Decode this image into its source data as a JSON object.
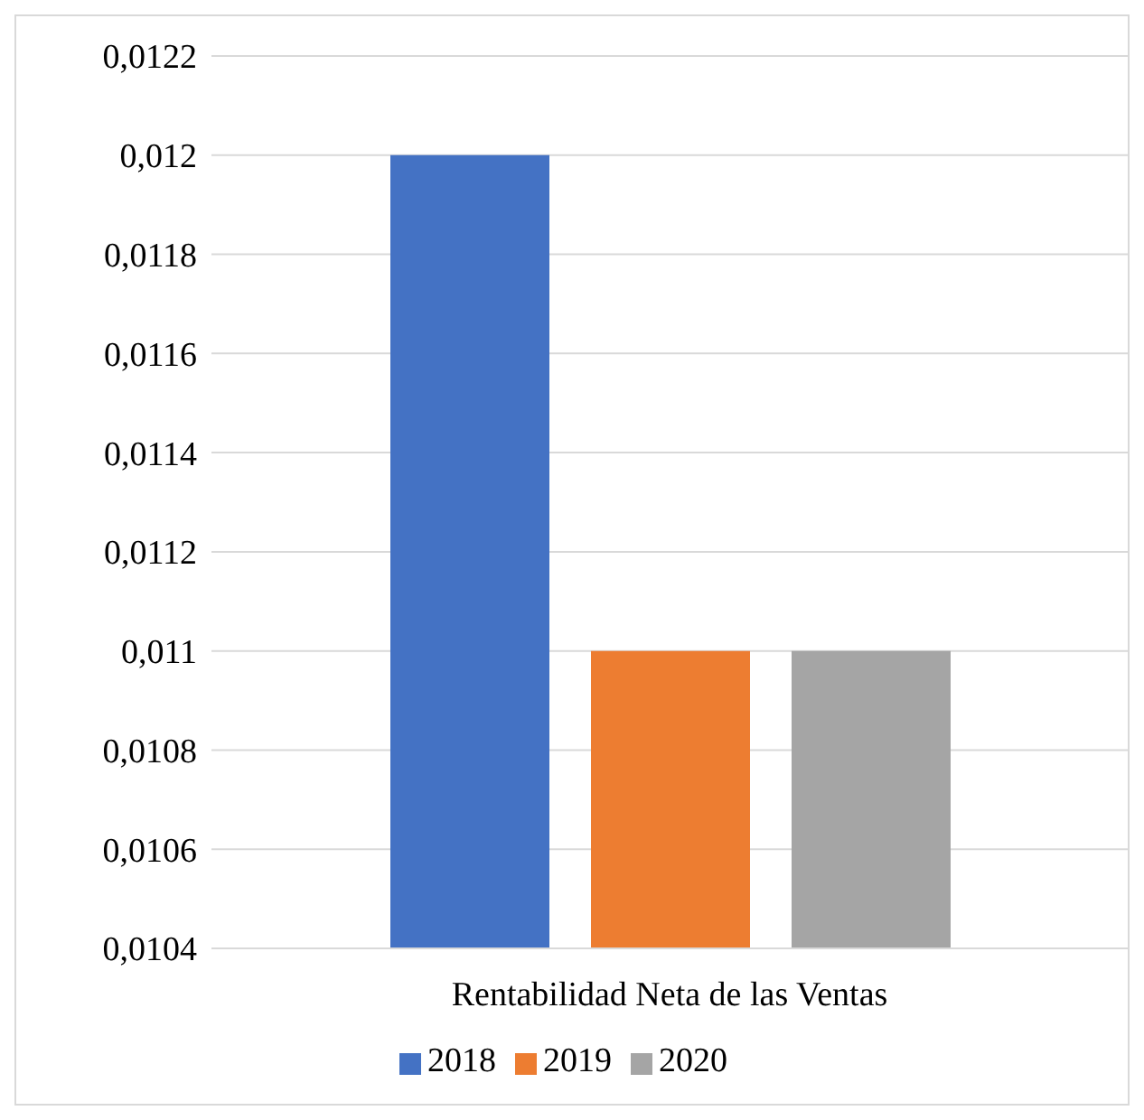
{
  "chart_data": {
    "type": "bar",
    "categories": [
      "Rentabilidad Neta de las Ventas"
    ],
    "series": [
      {
        "name": "2018",
        "color": "#4472c4",
        "values": [
          0.012
        ]
      },
      {
        "name": "2019",
        "color": "#ed7d31",
        "values": [
          0.011
        ]
      },
      {
        "name": "2020",
        "color": "#a5a5a5",
        "values": [
          0.011
        ]
      }
    ],
    "ylim": [
      0.0104,
      0.0122
    ],
    "yticks": [
      {
        "value": 0.0104,
        "label": "0,0104"
      },
      {
        "value": 0.0106,
        "label": "0,0106"
      },
      {
        "value": 0.0108,
        "label": "0,0108"
      },
      {
        "value": 0.011,
        "label": "0,011"
      },
      {
        "value": 0.0112,
        "label": "0,0112"
      },
      {
        "value": 0.0114,
        "label": "0,0114"
      },
      {
        "value": 0.0116,
        "label": "0,0116"
      },
      {
        "value": 0.0118,
        "label": "0,0118"
      },
      {
        "value": 0.012,
        "label": "0,012"
      },
      {
        "value": 0.0122,
        "label": "0,0122"
      }
    ],
    "grid": "y",
    "legend": "bottom"
  }
}
